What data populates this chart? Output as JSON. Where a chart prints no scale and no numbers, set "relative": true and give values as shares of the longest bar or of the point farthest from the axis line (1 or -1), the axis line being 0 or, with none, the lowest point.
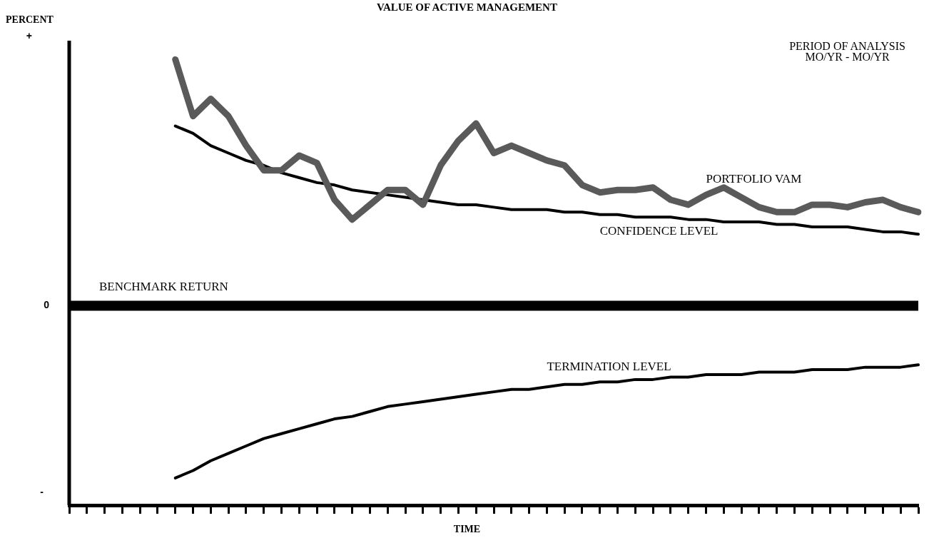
{
  "chart_data": {
    "type": "line",
    "title": "VALUE OF ACTIVE MANAGEMENT",
    "ylabel": "PERCENT",
    "xlabel": "TIME",
    "relative": true,
    "tick_labels": false,
    "legend": false,
    "grid": false,
    "marker": "none",
    "line_style": "solid",
    "categories": [
      null,
      null,
      null,
      null,
      null,
      null,
      null,
      null,
      null,
      null,
      null,
      null,
      null,
      null,
      null,
      null,
      null,
      null,
      null,
      null,
      null,
      null,
      null,
      null,
      null,
      null,
      null,
      null,
      null,
      null,
      null,
      null,
      null,
      null,
      null,
      null,
      null,
      null,
      null,
      null,
      null,
      null,
      null,
      null,
      null,
      null,
      null,
      null,
      null
    ],
    "series": [
      {
        "name": "PORTFOLIO VAM",
        "color": "#5a5a5a",
        "values": [
          null,
          null,
          null,
          null,
          null,
          null,
          1.0,
          0.77,
          0.84,
          0.77,
          0.65,
          0.55,
          0.55,
          0.61,
          0.58,
          0.43,
          0.35,
          0.41,
          0.47,
          0.47,
          0.41,
          0.57,
          0.67,
          0.74,
          0.62,
          0.65,
          0.62,
          0.59,
          0.57,
          0.49,
          0.46,
          0.47,
          0.47,
          0.48,
          0.43,
          0.41,
          0.45,
          0.48,
          0.44,
          0.4,
          0.38,
          0.38,
          0.41,
          0.41,
          0.4,
          0.42,
          0.43,
          0.4,
          0.38
        ]
      },
      {
        "name": "CONFIDENCE LEVEL",
        "color": "#000000",
        "values": [
          null,
          null,
          null,
          null,
          null,
          null,
          0.73,
          0.7,
          0.65,
          0.62,
          0.59,
          0.57,
          0.54,
          0.52,
          0.5,
          0.49,
          0.47,
          0.46,
          0.45,
          0.44,
          0.43,
          0.42,
          0.41,
          0.41,
          0.4,
          0.39,
          0.39,
          0.39,
          0.38,
          0.38,
          0.37,
          0.37,
          0.36,
          0.36,
          0.36,
          0.35,
          0.35,
          0.34,
          0.34,
          0.34,
          0.33,
          0.33,
          0.32,
          0.32,
          0.32,
          0.31,
          0.3,
          0.3,
          0.29
        ]
      },
      {
        "name": "TERMINATION LEVEL",
        "color": "#000000",
        "values": [
          null,
          null,
          null,
          null,
          null,
          null,
          -0.7,
          -0.67,
          -0.63,
          -0.6,
          -0.57,
          -0.54,
          -0.52,
          -0.5,
          -0.48,
          -0.46,
          -0.45,
          -0.43,
          -0.41,
          -0.4,
          -0.39,
          -0.38,
          -0.37,
          -0.36,
          -0.35,
          -0.34,
          -0.34,
          -0.33,
          -0.32,
          -0.32,
          -0.31,
          -0.31,
          -0.3,
          -0.3,
          -0.29,
          -0.29,
          -0.28,
          -0.28,
          -0.28,
          -0.27,
          -0.27,
          -0.27,
          -0.26,
          -0.26,
          -0.26,
          -0.25,
          -0.25,
          -0.25,
          -0.24
        ]
      }
    ],
    "ref_lines": [
      {
        "axis": "y",
        "value": 0,
        "label": "BENCHMARK RETURN",
        "color": "#000000"
      }
    ],
    "annotations": [
      "+",
      "0",
      "-",
      "PERIOD OF ANALYSIS\nMO/YR - MO/YR"
    ]
  }
}
